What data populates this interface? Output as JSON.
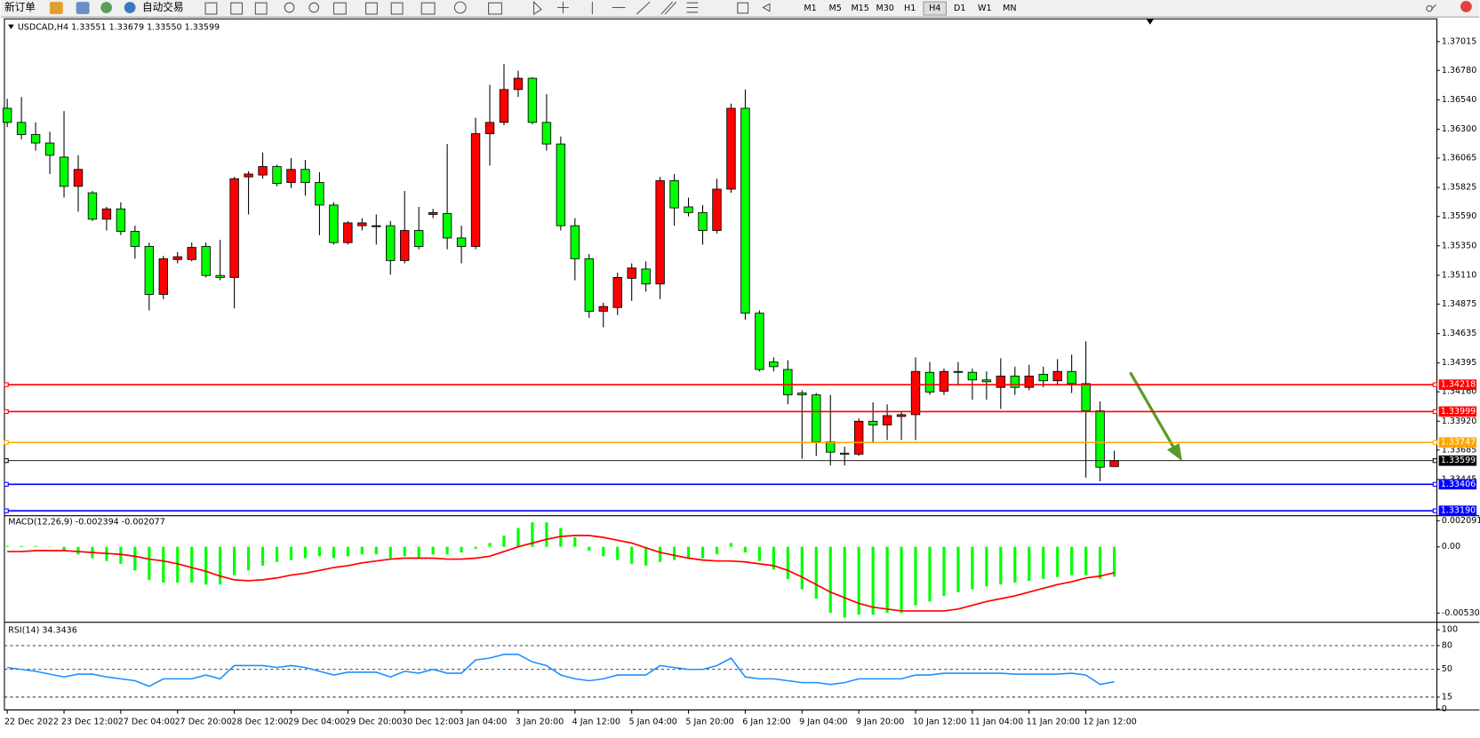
{
  "toolbar": {
    "new_order": "新订单",
    "auto_trading": "自动交易",
    "timeframes": [
      "M1",
      "M5",
      "M15",
      "M30",
      "H1",
      "H4",
      "D1",
      "W1",
      "MN"
    ]
  },
  "chart_data": [
    {
      "type": "candlestick",
      "title": "USDCAD,H4 1.33551 1.33679 1.33550 1.33599",
      "up_color": "#ff0000",
      "down_color": "#00ff00",
      "categories": [
        "22 Dec 2022",
        null,
        null,
        null,
        "23 Dec 12:00",
        null,
        null,
        null,
        "27 Dec 04:00",
        null,
        null,
        null,
        "27 Dec 20:00",
        null,
        null,
        null,
        "28 Dec 12:00",
        null,
        null,
        null,
        "29 Dec 04:00",
        null,
        null,
        null,
        "29 Dec 20:00",
        null,
        null,
        null,
        "30 Dec 12:00",
        null,
        null,
        null,
        "3 Jan 04:00",
        null,
        null,
        null,
        "3 Jan 20:00",
        null,
        null,
        null,
        "4 Jan 12:00",
        null,
        null,
        null,
        "5 Jan 04:00",
        null,
        null,
        null,
        "5 Jan 20:00",
        null,
        null,
        null,
        "6 Jan 12:00",
        null,
        null,
        null,
        "9 Jan 04:00",
        null,
        null,
        null,
        "9 Jan 20:00",
        null,
        null,
        null,
        "10 Jan 12:00",
        null,
        null,
        null,
        "11 Jan 04:00",
        null,
        null,
        null,
        "11 Jan 20:00",
        null,
        null,
        null,
        "12 Jan 12:00",
        null,
        null
      ],
      "open": [
        1.36471,
        1.36356,
        1.36257,
        1.36188,
        1.36073,
        1.35835,
        1.35782,
        1.35567,
        1.35651,
        1.35468,
        1.35345,
        1.34954,
        1.35238,
        1.35238,
        1.35345,
        1.35108,
        1.35092,
        1.35912,
        1.35927,
        1.35996,
        1.35866,
        1.35973,
        1.35866,
        1.35682,
        1.35376,
        1.35514,
        1.35506,
        1.35514,
        1.3523,
        1.35475,
        1.35606,
        1.35613,
        1.35414,
        1.35345,
        1.36264,
        1.36356,
        1.36624,
        1.36716,
        1.36356,
        1.3618,
        1.35514,
        1.35245,
        1.34817,
        1.34847,
        1.35085,
        1.35161,
        1.35039,
        1.35881,
        1.35667,
        1.35621,
        1.35475,
        1.35812,
        1.36471,
        1.34801,
        1.34403,
        1.34342,
        1.3415,
        1.34135,
        1.33752,
        1.3366,
        1.33652,
        1.3392,
        1.3389,
        1.33959,
        1.33974,
        1.34319,
        1.34165,
        1.34326,
        1.34319,
        1.34257,
        1.34196,
        1.34288,
        1.34196,
        1.34303,
        1.3425,
        1.34326,
        1.34227,
        1.34005,
        1.33551
      ],
      "high": [
        1.36548,
        1.36563,
        1.36356,
        1.3628,
        1.36448,
        1.36088,
        1.35797,
        1.35667,
        1.35705,
        1.35514,
        1.35376,
        1.35268,
        1.35299,
        1.35376,
        1.35376,
        1.35399,
        1.35912,
        1.35958,
        1.36111,
        1.36011,
        1.36065,
        1.3605,
        1.3595,
        1.35705,
        1.35552,
        1.35575,
        1.35606,
        1.35552,
        1.35797,
        1.35667,
        1.35651,
        1.3618,
        1.35514,
        1.36394,
        1.36663,
        1.36831,
        1.36777,
        1.36724,
        1.36586,
        1.36241,
        1.35575,
        1.35284,
        1.34885,
        1.35131,
        1.35207,
        1.35223,
        1.35912,
        1.35935,
        1.35743,
        1.35682,
        1.35897,
        1.36509,
        1.36624,
        1.34824,
        1.34441,
        1.34418,
        1.34173,
        1.3415,
        1.34135,
        1.33713,
        1.33943,
        1.34074,
        1.34058,
        1.33997,
        1.34441,
        1.34403,
        1.34349,
        1.34403,
        1.34349,
        1.34326,
        1.34434,
        1.34365,
        1.3438,
        1.34365,
        1.34426,
        1.34464,
        1.34571,
        1.34081,
        1.33679
      ],
      "low": [
        1.36318,
        1.36218,
        1.36126,
        1.35935,
        1.35743,
        1.35628,
        1.35552,
        1.35475,
        1.35437,
        1.35245,
        1.34824,
        1.34916,
        1.35207,
        1.35223,
        1.35092,
        1.35069,
        1.3484,
        1.35606,
        1.35897,
        1.35835,
        1.3582,
        1.35759,
        1.35437,
        1.3536,
        1.3536,
        1.35475,
        1.3536,
        1.35115,
        1.35207,
        1.35322,
        1.35575,
        1.35322,
        1.35207,
        1.35322,
        1.36004,
        1.36333,
        1.36563,
        1.36341,
        1.36126,
        1.35475,
        1.35069,
        1.34763,
        1.34686,
        1.34786,
        1.34901,
        1.34977,
        1.34916,
        1.35514,
        1.3559,
        1.3536,
        1.35452,
        1.35782,
        1.34748,
        1.34326,
        1.34326,
        1.34058,
        1.33614,
        1.33637,
        1.3356,
        1.3356,
        1.33637,
        1.33752,
        1.33767,
        1.33767,
        1.33767,
        1.34135,
        1.34135,
        1.34211,
        1.34096,
        1.34096,
        1.3402,
        1.34135,
        1.34173,
        1.34196,
        1.34211,
        1.3415,
        1.33461,
        1.3343,
        1.3355
      ],
      "close": [
        1.36356,
        1.36257,
        1.36188,
        1.36088,
        1.35835,
        1.35973,
        1.35567,
        1.35651,
        1.35468,
        1.35345,
        1.34954,
        1.35245,
        1.35261,
        1.35337,
        1.35108,
        1.35092,
        1.35897,
        1.35935,
        1.35996,
        1.35858,
        1.35973,
        1.35866,
        1.35682,
        1.35376,
        1.35537,
        1.35537,
        1.35514,
        1.3523,
        1.35475,
        1.35345,
        1.35621,
        1.35414,
        1.35345,
        1.36264,
        1.36356,
        1.36624,
        1.36716,
        1.36356,
        1.3618,
        1.35514,
        1.35245,
        1.34817,
        1.34855,
        1.35092,
        1.35169,
        1.35039,
        1.35881,
        1.35659,
        1.35621,
        1.35475,
        1.35812,
        1.36471,
        1.34801,
        1.34342,
        1.34365,
        1.34135,
        1.34135,
        1.33752,
        1.33668,
        1.33652,
        1.3392,
        1.3389,
        1.33966,
        1.33974,
        1.34326,
        1.34158,
        1.34326,
        1.34319,
        1.34257,
        1.34242,
        1.34288,
        1.34196,
        1.34288,
        1.3425,
        1.34326,
        1.34227,
        1.34005,
        1.33545,
        1.33599
      ],
      "ylim": [
        1.3315,
        1.372
      ],
      "yticks": [
        {
          "value": 1.37015,
          "label": "1.37015"
        },
        {
          "value": 1.3678,
          "label": "1.36780"
        },
        {
          "value": 1.3654,
          "label": "1.36540"
        },
        {
          "value": 1.363,
          "label": "1.36300"
        },
        {
          "value": 1.36065,
          "label": "1.36065"
        },
        {
          "value": 1.35825,
          "label": "1.35825"
        },
        {
          "value": 1.3559,
          "label": "1.35590"
        },
        {
          "value": 1.3535,
          "label": "1.35350"
        },
        {
          "value": 1.3511,
          "label": "1.35110"
        },
        {
          "value": 1.34875,
          "label": "1.34875"
        },
        {
          "value": 1.34635,
          "label": "1.34635"
        },
        {
          "value": 1.34395,
          "label": "1.34395"
        },
        {
          "value": 1.3416,
          "label": "1.34160"
        },
        {
          "value": 1.3392,
          "label": "1.33920"
        },
        {
          "value": 1.33685,
          "label": "1.33685"
        },
        {
          "value": 1.33445,
          "label": "1.33445"
        }
      ],
      "levels": [
        {
          "value": 1.34218,
          "label": "1.34218",
          "color": "#ff0000"
        },
        {
          "value": 1.33999,
          "label": "1.33999",
          "color": "#ff0000"
        },
        {
          "value": 1.33747,
          "label": "1.33747",
          "color": "#ffa500"
        },
        {
          "value": 1.33599,
          "label": "1.33599",
          "color": "#000000"
        },
        {
          "value": 1.33406,
          "label": "1.33406",
          "color": "#0000ff"
        },
        {
          "value": 1.3319,
          "label": "1.33190",
          "color": "#0000ff"
        }
      ]
    },
    {
      "type": "macd",
      "title": "MACD(12,26,9) -0.002394 -0.002077",
      "series": [
        {
          "style": "bar",
          "color": "#00ff00",
          "values": [
            7.6e-05,
            7.6e-05,
            7.6e-05,
            0,
            -0.000302,
            -0.000604,
            -0.000906,
            -0.001133,
            -0.001359,
            -0.001888,
            -0.002643,
            -0.002869,
            -0.002869,
            -0.002869,
            -0.00302,
            -0.00302,
            -0.002265,
            -0.001888,
            -0.00151,
            -0.001208,
            -0.001057,
            -0.000906,
            -0.000755,
            -0.000906,
            -0.000755,
            -0.000604,
            -0.000604,
            -0.000906,
            -0.000755,
            -0.000906,
            -0.000604,
            -0.000604,
            -0.000453,
            -0.000151,
            0.000302,
            0.000906,
            0.00151,
            0.001963,
            0.001963,
            0.00151,
            0.000755,
            -0.000302,
            -0.000755,
            -0.001057,
            -0.001359,
            -0.00151,
            -0.001208,
            -0.001057,
            -0.000906,
            -0.000906,
            -0.000604,
            0.000302,
            -0.000453,
            -0.001133,
            -0.001812,
            -0.002567,
            -0.003398,
            -0.004153,
            -0.005285,
            -0.005663,
            -0.005436,
            -0.005436,
            -0.005285,
            -0.005285,
            -0.004681,
            -0.004379,
            -0.003926,
            -0.003624,
            -0.003398,
            -0.003171,
            -0.00302,
            -0.002869,
            -0.002718,
            -0.002567,
            -0.002416,
            -0.002265,
            -0.002265,
            -0.002567,
            -0.002394
          ]
        },
        {
          "style": "line",
          "color": "#ff0000",
          "values": [
            -0.000378,
            -0.000378,
            -0.000302,
            -0.000302,
            -0.000302,
            -0.000378,
            -0.000453,
            -0.000529,
            -0.000604,
            -0.000755,
            -0.000982,
            -0.001133,
            -0.001359,
            -0.001661,
            -0.001963,
            -0.002341,
            -0.002643,
            -0.002718,
            -0.002643,
            -0.002492,
            -0.002265,
            -0.002114,
            -0.001888,
            -0.001661,
            -0.00151,
            -0.001284,
            -0.001133,
            -0.000982,
            -0.000906,
            -0.000906,
            -0.000906,
            -0.000982,
            -0.000982,
            -0.000906,
            -0.000755,
            -0.000378,
            0,
            0.000302,
            0.000604,
            0.000831,
            0.000906,
            0.000906,
            0.000755,
            0.000529,
            0.000302,
            -7.6e-05,
            -0.000453,
            -0.00068,
            -0.000906,
            -0.001057,
            -0.001133,
            -0.001133,
            -0.001208,
            -0.001359,
            -0.00151,
            -0.001888,
            -0.002416,
            -0.00302,
            -0.003624,
            -0.004077,
            -0.00453,
            -0.004832,
            -0.004983,
            -0.005134,
            -0.005134,
            -0.005134,
            -0.005134,
            -0.004983,
            -0.004681,
            -0.004379,
            -0.004153,
            -0.003926,
            -0.003624,
            -0.003322,
            -0.00302,
            -0.002794,
            -0.002492,
            -0.002341,
            -0.002077
          ]
        }
      ],
      "ylim": [
        -0.005965,
        0.002492
      ],
      "yticks": [
        0.002091,
        {
          "value": 0,
          "label": "0.00"
        },
        -0.005303
      ]
    },
    {
      "type": "line",
      "title": "RSI(14) 34.3436",
      "color": "#1e90ff",
      "grid": "dashed",
      "values": [
        52.4,
        50,
        47.6,
        44,
        40.5,
        44,
        44,
        40.5,
        38.1,
        35.7,
        28.6,
        38.1,
        38.1,
        38.1,
        42.9,
        38.1,
        54.8,
        54.8,
        54.8,
        52.4,
        54.8,
        52.4,
        47.6,
        42.9,
        46.4,
        46.4,
        46.4,
        40.5,
        47.6,
        45.2,
        50,
        45.2,
        45.2,
        61.9,
        64.3,
        69,
        69,
        59.5,
        54.8,
        42.9,
        38.1,
        35.7,
        38.1,
        42.9,
        42.9,
        42.9,
        54.8,
        52.4,
        50,
        50,
        54.8,
        64.3,
        40.5,
        38.1,
        38.1,
        35.7,
        33.3,
        33.3,
        31,
        33.3,
        38.1,
        38.1,
        38.1,
        38.1,
        42.9,
        42.9,
        45.2,
        45.2,
        45.2,
        45.2,
        45.2,
        44,
        44,
        44,
        44,
        45.2,
        42.9,
        31,
        34.3436
      ],
      "ylim": [
        0,
        100
      ],
      "yticks": [
        100,
        80,
        50,
        15,
        0
      ]
    }
  ]
}
